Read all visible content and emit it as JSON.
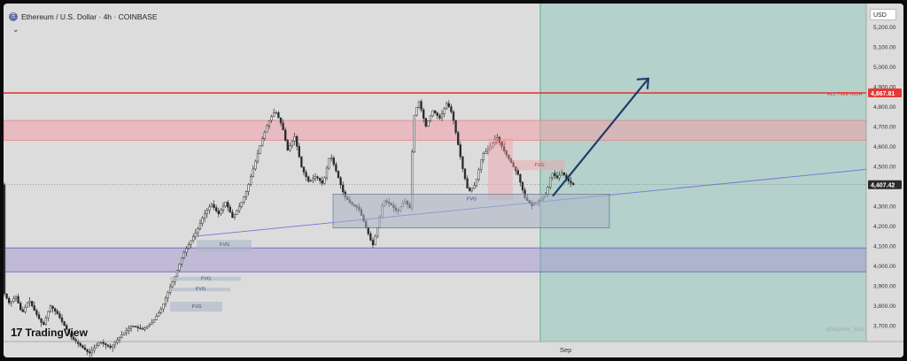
{
  "header": {
    "symbol_title": "Ethereum / U.S. Dollar · 4h · COINBASE",
    "icon": "ethereum-icon",
    "collapse_icon": "chevron-down-icon",
    "currency": "USD"
  },
  "branding": {
    "logo_mark": "17",
    "logo_text": "TradingView",
    "watermark": "@Nephew_Sam_"
  },
  "colors": {
    "candle": "#2a2a2a",
    "resistance_line": "#e53935",
    "supply_zone": "#f0a0a8",
    "demand_zone": "#a497cf",
    "trendline": "#7e6fd9",
    "fvg_box": "#a9b4c6",
    "forecast_region": "#a7cfc6",
    "projection_arrow": "#1f3d6b",
    "price_tag": "#2b2b2b"
  },
  "chart_data": {
    "type": "candlestick",
    "symbol": "ETH/USD",
    "interval": "4h",
    "exchange": "COINBASE",
    "y_axis": {
      "ticks": [
        3700,
        3800,
        3900,
        4000,
        4100,
        4200,
        4300,
        4400,
        4500,
        4600,
        4700,
        4800,
        4900,
        5000,
        5100,
        5200
      ],
      "tick_labels": [
        "3,700.00",
        "3,800.00",
        "3,900.00",
        "4,000.00",
        "4,100.00",
        "4,200.00",
        "4,300.00",
        "4,400.00",
        "4,500.00",
        "4,600.00",
        "4,700.00",
        "4,800.00",
        "4,900.00",
        "5,000.00",
        "5,100.00",
        "5,200.00"
      ],
      "range": [
        3620,
        5290
      ]
    },
    "x_axis": {
      "tick_labels": [
        "Sep"
      ]
    },
    "grid": false,
    "price_path": [
      [
        0,
        3880
      ],
      [
        8,
        3810
      ],
      [
        15,
        3850
      ],
      [
        22,
        3760
      ],
      [
        30,
        3830
      ],
      [
        38,
        3760
      ],
      [
        46,
        3700
      ],
      [
        54,
        3800
      ],
      [
        62,
        3760
      ],
      [
        70,
        3700
      ],
      [
        78,
        3640
      ],
      [
        88,
        3600
      ],
      [
        98,
        3560
      ],
      [
        110,
        3620
      ],
      [
        122,
        3590
      ],
      [
        134,
        3650
      ],
      [
        146,
        3700
      ],
      [
        158,
        3680
      ],
      [
        170,
        3720
      ],
      [
        180,
        3790
      ],
      [
        188,
        3880
      ],
      [
        196,
        3960
      ],
      [
        204,
        4060
      ],
      [
        212,
        4120
      ],
      [
        220,
        4180
      ],
      [
        228,
        4260
      ],
      [
        236,
        4310
      ],
      [
        244,
        4260
      ],
      [
        252,
        4320
      ],
      [
        260,
        4240
      ],
      [
        268,
        4300
      ],
      [
        276,
        4380
      ],
      [
        284,
        4500
      ],
      [
        292,
        4620
      ],
      [
        300,
        4720
      ],
      [
        308,
        4780
      ],
      [
        316,
        4700
      ],
      [
        322,
        4580
      ],
      [
        330,
        4650
      ],
      [
        338,
        4490
      ],
      [
        346,
        4420
      ],
      [
        354,
        4450
      ],
      [
        362,
        4410
      ],
      [
        370,
        4560
      ],
      [
        378,
        4460
      ],
      [
        386,
        4350
      ],
      [
        394,
        4310
      ],
      [
        402,
        4290
      ],
      [
        410,
        4200
      ],
      [
        418,
        4100
      ],
      [
        424,
        4200
      ],
      [
        430,
        4330
      ],
      [
        438,
        4310
      ],
      [
        446,
        4270
      ],
      [
        454,
        4330
      ],
      [
        460,
        4290
      ],
      [
        464,
        4740
      ],
      [
        470,
        4830
      ],
      [
        478,
        4700
      ],
      [
        486,
        4780
      ],
      [
        494,
        4740
      ],
      [
        502,
        4820
      ],
      [
        508,
        4760
      ],
      [
        514,
        4620
      ],
      [
        520,
        4480
      ],
      [
        526,
        4370
      ],
      [
        534,
        4410
      ],
      [
        542,
        4560
      ],
      [
        550,
        4590
      ],
      [
        558,
        4650
      ],
      [
        566,
        4580
      ],
      [
        574,
        4520
      ],
      [
        582,
        4460
      ],
      [
        590,
        4340
      ],
      [
        598,
        4300
      ],
      [
        606,
        4330
      ],
      [
        614,
        4360
      ],
      [
        620,
        4470
      ],
      [
        626,
        4440
      ],
      [
        632,
        4470
      ],
      [
        638,
        4430
      ],
      [
        644,
        4407
      ]
    ],
    "annotations": {
      "all_time_high": {
        "label": "ALL TIME HIGH",
        "value": 4867.81,
        "value_label": "4,867.81"
      },
      "current_price": {
        "value": 4407.42,
        "value_label": "4,407.42"
      },
      "supply_zone": {
        "low": 4630,
        "high": 4730
      },
      "demand_zone": {
        "low": 3970,
        "high": 4090
      },
      "trendline": {
        "from": [
          "x220",
          4150
        ],
        "to": [
          "x1010",
          4500
        ]
      },
      "fvg_zones": [
        {
          "label": "FVG",
          "low": 4330,
          "high": 4640,
          "x_from": 547,
          "x_to": 575
        },
        {
          "label": "FVG",
          "low": 4480,
          "high": 4530,
          "x_from": 575,
          "x_to": 634
        },
        {
          "label": "FVG",
          "low": 4190,
          "high": 4360,
          "x_from": 372,
          "x_to": 684
        },
        {
          "label": "FVG",
          "low": 4070,
          "high": 4130,
          "x_from": 218,
          "x_to": 280
        },
        {
          "label": "FVG",
          "low": 3925,
          "high": 3945,
          "x_from": 188,
          "x_to": 268
        },
        {
          "label": "FVG",
          "low": 3880,
          "high": 3890,
          "x_from": 188,
          "x_to": 256
        },
        {
          "label": "FVG",
          "low": 3770,
          "high": 3820,
          "x_from": 188,
          "x_to": 247
        }
      ],
      "forecast_region_start": "Sep",
      "projection": {
        "from": 4350,
        "to": 4940
      }
    }
  }
}
